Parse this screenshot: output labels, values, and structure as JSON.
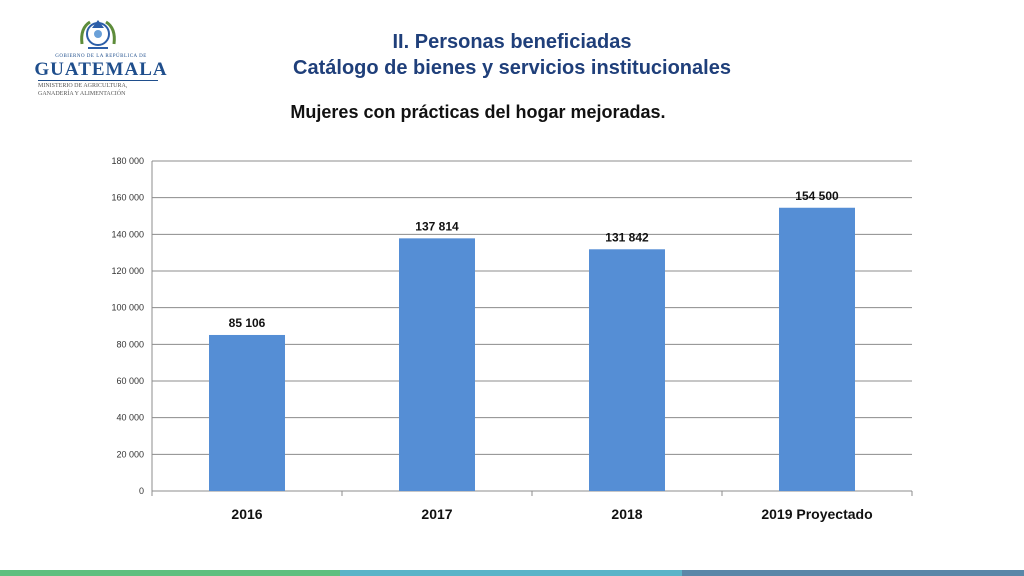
{
  "logo": {
    "top_text": "GOBIERNO DE LA REPÚBLICA DE",
    "main_text": "GUATEMALA",
    "sub_text_1": "MINISTERIO DE AGRICULTURA,",
    "sub_text_2": "GANADERÍA Y ALIMENTACIÓN"
  },
  "header": {
    "title_line1": "II. Personas beneficiadas",
    "title_line2": "Catálogo de bienes y servicios institucionales"
  },
  "colors": {
    "bar": "#558ed5",
    "grid": "#8c8c8c",
    "title": "#1f3f7a",
    "footer": [
      "#5fbf7f",
      "#5ab4c8",
      "#5a87a8"
    ]
  },
  "chart_data": {
    "type": "bar",
    "title": "Mujeres con prácticas del hogar mejoradas.",
    "categories": [
      "2016",
      "2017",
      "2018",
      "2019 Proyectado"
    ],
    "values": [
      85106,
      137814,
      131842,
      154500
    ],
    "value_labels": [
      "85 106",
      "137 814",
      "131 842",
      "154 500"
    ],
    "y_ticks": [
      0,
      20000,
      40000,
      60000,
      80000,
      100000,
      120000,
      140000,
      160000,
      180000
    ],
    "y_tick_labels": [
      "0",
      "20 000",
      "40 000",
      "60 000",
      "80 000",
      "100 000",
      "120 000",
      "140 000",
      "160 000",
      "180 000"
    ],
    "ylim": [
      0,
      180000
    ],
    "grid": true,
    "xlabel": "",
    "ylabel": ""
  }
}
